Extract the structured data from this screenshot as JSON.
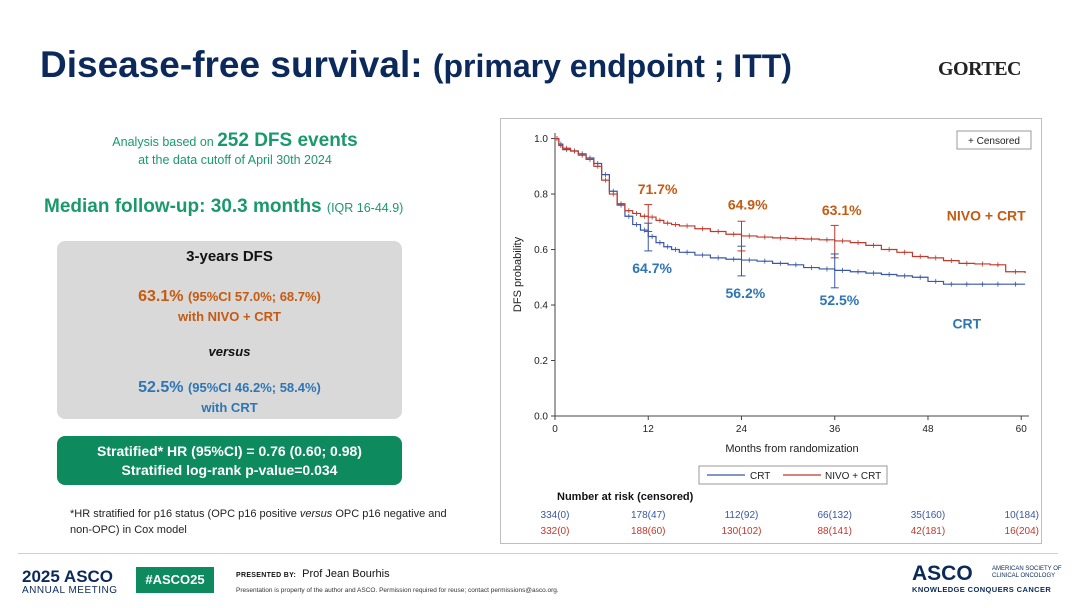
{
  "slide": {
    "title": "Disease-free survival:",
    "title_sub": "(primary endpoint ; ITT)",
    "logo": "GORTEC",
    "analysis_line1_pre": "Analysis based on ",
    "analysis_events": "252 DFS events",
    "analysis_line2": "at the data cutoff of April 30th 2024",
    "followup_main": "Median follow-up: 30.3 months",
    "followup_iqr": "(IQR 16-44.9)",
    "dfs_box": {
      "heading": "3-years DFS",
      "nivo_value": "63.1%",
      "nivo_ci": "(95%CI 57.0%; 68.7%)",
      "nivo_with": "with NIVO + CRT",
      "versus": "versus",
      "crt_value": "52.5%",
      "crt_ci": "(95%CI 46.2%; 58.4%)",
      "crt_with": "with CRT"
    },
    "hr_line1": "Stratified* HR (95%CI) = 0.76 (0.60; 0.98)",
    "hr_line2": "Stratified log-rank p-value=0.034",
    "footnote_part1": "*HR stratified for p16 status (OPC p16 positive ",
    "footnote_italic": "versus",
    "footnote_part2": " OPC p16 negative and non-OPC) in Cox model"
  },
  "footer": {
    "year_brand": "2025 ASCO",
    "annual_meeting": "ANNUAL MEETING",
    "hashtag": "#ASCO25",
    "presented_by_label": "PRESENTED BY:",
    "presenter": "Prof Jean Bourhis",
    "property_note": "Presentation is property of the author and ASCO. Permission required for reuse; contact permissions@asco.org.",
    "asco_word": "ASCO",
    "asco_society": "AMERICAN SOCIETY OF CLINICAL ONCOLOGY",
    "asco_tagline": "KNOWLEDGE CONQUERS CANCER"
  },
  "colors": {
    "nivo": "#c0392b",
    "crt": "#3a57a7",
    "nivo_label": "#c55a11",
    "crt_label": "#2e75b6"
  },
  "chart_data": {
    "type": "line",
    "xlabel": "Months from randomization",
    "ylabel": "DFS probability",
    "xlim": [
      0,
      61
    ],
    "ylim": [
      0,
      1.02
    ],
    "xticks": [
      0,
      12,
      24,
      36,
      48,
      60
    ],
    "yticks": [
      0.0,
      0.2,
      0.4,
      0.6,
      0.8,
      1.0
    ],
    "ytick_labels": [
      "0.0",
      "0.2",
      "0.4",
      "0.6",
      "0.8",
      "1.0"
    ],
    "legend_censored": "+ Censored",
    "legend": [
      "CRT",
      "NIVO + CRT"
    ],
    "series": [
      {
        "name": "CRT",
        "x": [
          0,
          0.5,
          1,
          2,
          3,
          4,
          5,
          6,
          7,
          8,
          9,
          10,
          11,
          12,
          13,
          14,
          15,
          16,
          18,
          20,
          22,
          24,
          26,
          28,
          30,
          32,
          34,
          36,
          38,
          40,
          42,
          44,
          46,
          48,
          50,
          52,
          54,
          56,
          58,
          60.5
        ],
        "y": [
          1.0,
          0.98,
          0.96,
          0.955,
          0.945,
          0.93,
          0.91,
          0.87,
          0.81,
          0.76,
          0.72,
          0.69,
          0.67,
          0.647,
          0.625,
          0.61,
          0.6,
          0.59,
          0.58,
          0.57,
          0.565,
          0.562,
          0.558,
          0.55,
          0.545,
          0.535,
          0.53,
          0.525,
          0.52,
          0.515,
          0.51,
          0.505,
          0.5,
          0.485,
          0.475,
          0.475,
          0.475,
          0.475,
          0.475,
          0.475
        ]
      },
      {
        "name": "NIVO + CRT",
        "x": [
          0,
          0.5,
          1,
          2,
          3,
          4,
          5,
          6,
          7,
          8,
          9,
          10,
          11,
          12,
          13,
          14,
          15,
          16,
          18,
          20,
          22,
          24,
          26,
          28,
          30,
          32,
          34,
          36,
          38,
          40,
          42,
          44,
          46,
          48,
          50,
          52,
          54,
          56,
          58,
          60.5
        ],
        "y": [
          1.0,
          0.975,
          0.965,
          0.955,
          0.94,
          0.925,
          0.9,
          0.85,
          0.8,
          0.765,
          0.74,
          0.73,
          0.72,
          0.717,
          0.705,
          0.695,
          0.69,
          0.685,
          0.675,
          0.665,
          0.655,
          0.649,
          0.645,
          0.642,
          0.64,
          0.638,
          0.635,
          0.631,
          0.625,
          0.615,
          0.6,
          0.59,
          0.575,
          0.57,
          0.56,
          0.55,
          0.548,
          0.545,
          0.52,
          0.515
        ]
      }
    ],
    "ci_markers": [
      {
        "series": "NIVO + CRT",
        "x": 12,
        "y": 0.717,
        "low": 0.665,
        "high": 0.762
      },
      {
        "series": "NIVO + CRT",
        "x": 24,
        "y": 0.649,
        "low": 0.595,
        "high": 0.702
      },
      {
        "series": "NIVO + CRT",
        "x": 36,
        "y": 0.631,
        "low": 0.57,
        "high": 0.687
      },
      {
        "series": "CRT",
        "x": 12,
        "y": 0.647,
        "low": 0.595,
        "high": 0.695
      },
      {
        "series": "CRT",
        "x": 24,
        "y": 0.562,
        "low": 0.505,
        "high": 0.612
      },
      {
        "series": "CRT",
        "x": 36,
        "y": 0.525,
        "low": 0.462,
        "high": 0.584
      }
    ],
    "annotations": [
      {
        "text": "71.7%",
        "series": "NIVO + CRT",
        "x": 13.2,
        "y": 0.8
      },
      {
        "text": "64.9%",
        "series": "NIVO + CRT",
        "x": 24.8,
        "y": 0.745
      },
      {
        "text": "63.1%",
        "series": "NIVO + CRT",
        "x": 36.9,
        "y": 0.725
      },
      {
        "text": "NIVO + CRT",
        "series": "NIVO + CRT",
        "x": 55.5,
        "y": 0.705
      },
      {
        "text": "64.7%",
        "series": "CRT",
        "x": 12.5,
        "y": 0.515
      },
      {
        "text": "56.2%",
        "series": "CRT",
        "x": 24.5,
        "y": 0.425
      },
      {
        "text": "52.5%",
        "series": "CRT",
        "x": 36.6,
        "y": 0.4
      },
      {
        "text": "CRT",
        "series": "CRT",
        "x": 53,
        "y": 0.315
      }
    ],
    "risk_table": {
      "title": "Number at risk (censored)",
      "rows": [
        {
          "series": "CRT",
          "values": [
            "334(0)",
            "178(47)",
            "112(92)",
            "66(132)",
            "35(160)",
            "10(184)"
          ]
        },
        {
          "series": "NIVO + CRT",
          "values": [
            "332(0)",
            "188(60)",
            "130(102)",
            "88(141)",
            "42(181)",
            "16(204)"
          ]
        }
      ]
    }
  }
}
